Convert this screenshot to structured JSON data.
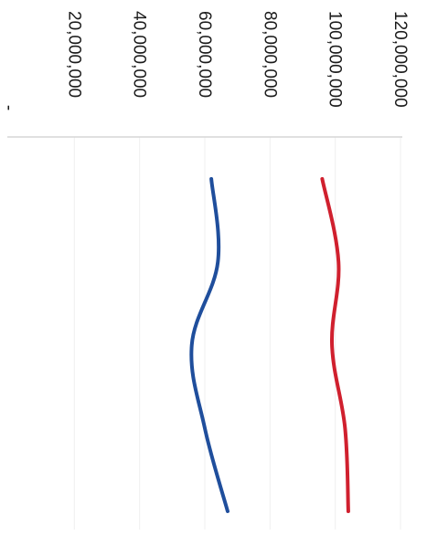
{
  "chart_data": {
    "type": "line",
    "orientation": "rotated 90 degrees clockwise",
    "x": [
      1,
      2,
      3,
      4,
      5
    ],
    "series": [
      {
        "values": [
          62000000,
          64000000,
          56000000,
          60000000,
          67000000
        ],
        "color": "#1f4e9c"
      },
      {
        "values": [
          96000000,
          101000000,
          99000000,
          103000000,
          104000000
        ],
        "color": "#d0202e"
      }
    ],
    "ylim": [
      0,
      120000000
    ],
    "yticks": [
      {
        "value": 0,
        "label": "-"
      },
      {
        "value": 20000000,
        "label": "20,000,000"
      },
      {
        "value": 40000000,
        "label": "40,000,000"
      },
      {
        "value": 60000000,
        "label": "60,000,000"
      },
      {
        "value": 80000000,
        "label": "80,000,000"
      },
      {
        "value": 100000000,
        "label": "100,000,000"
      },
      {
        "value": 120000000,
        "label": "120,000,000"
      }
    ],
    "grid": true,
    "legend": "none"
  }
}
